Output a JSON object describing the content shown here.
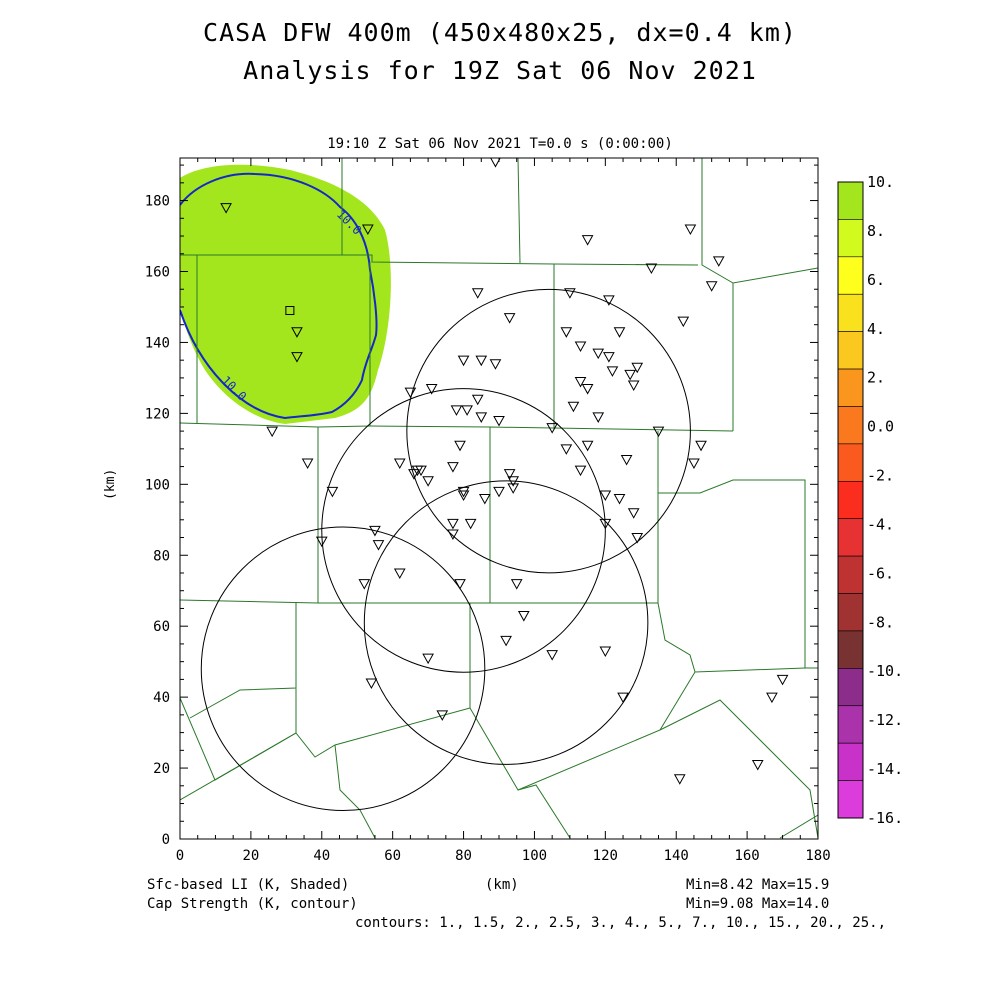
{
  "title": {
    "line1": "CASA DFW 400m (450x480x25, dx=0.4 km)",
    "line2": "Analysis for 19Z Sat 06 Nov 2021"
  },
  "subtitle": "19:10 Z Sat 06 Nov 2021    T=0.0 s (0:00:00)",
  "axes": {
    "xlabel": "(km)",
    "ylabel": "(km)",
    "xlim": [
      0,
      180
    ],
    "ylim": [
      0,
      192
    ],
    "x_ticks": [
      "0",
      "20",
      "40",
      "60",
      "80",
      "100",
      "120",
      "140",
      "160",
      "180"
    ],
    "y_ticks": [
      "0",
      "20",
      "40",
      "60",
      "80",
      "100",
      "120",
      "140",
      "160",
      "180"
    ]
  },
  "footer": {
    "left1": "Sfc-based LI (K, Shaded)",
    "left2": "Cap Strength (K, contour)",
    "center": "(km)",
    "right1": "Min=8.42 Max=15.9",
    "right2": "Min=9.08 Max=14.0",
    "contours": "contours: 1., 1.5, 2., 2.5, 3., 4., 5., 7., 10., 15., 20., 25.,"
  },
  "colorbar": {
    "labels": [
      "10.",
      "8.",
      "6.",
      "4.",
      "2.",
      "0.0",
      "-2.",
      "-4.",
      "-6.",
      "-8.",
      "-10.",
      "-12.",
      "-14.",
      "-16."
    ],
    "colors": [
      "#a4e61e",
      "#d2fa1e",
      "#ffff1e",
      "#fae11e",
      "#fac81e",
      "#fa961e",
      "#fa781e",
      "#fa5a1e",
      "#fa2d1e",
      "#e63232",
      "#be3232",
      "#a03232",
      "#783232",
      "#8c2d8c",
      "#aa32aa",
      "#c832c8",
      "#dc3cdc"
    ]
  },
  "map": {
    "shaded_color": "#a4e61e",
    "contour_color": "#1428c8",
    "boundary_color": "#2a782a",
    "contour_label": "10.0",
    "radar_range_rings": [
      {
        "x": 104,
        "y": 115,
        "r": 40
      },
      {
        "x": 80,
        "y": 87,
        "r": 40
      },
      {
        "x": 46,
        "y": 48,
        "r": 40
      },
      {
        "x": 92,
        "y": 61,
        "r": 40
      }
    ],
    "station_square": {
      "x": 31,
      "y": 149
    },
    "stations": [
      [
        89,
        191
      ],
      [
        13,
        178
      ],
      [
        53,
        172
      ],
      [
        115,
        169
      ],
      [
        144,
        172
      ],
      [
        152,
        163
      ],
      [
        133,
        161
      ],
      [
        150,
        156
      ],
      [
        84,
        154
      ],
      [
        110,
        154
      ],
      [
        121,
        152
      ],
      [
        93,
        147
      ],
      [
        142,
        146
      ],
      [
        33,
        143
      ],
      [
        109,
        143
      ],
      [
        124,
        143
      ],
      [
        113,
        139
      ],
      [
        118,
        137
      ],
      [
        121,
        136
      ],
      [
        33,
        136
      ],
      [
        80,
        135
      ],
      [
        85,
        135
      ],
      [
        89,
        134
      ],
      [
        122,
        132
      ],
      [
        127,
        131
      ],
      [
        129,
        133
      ],
      [
        128,
        128
      ],
      [
        113,
        129
      ],
      [
        115,
        127
      ],
      [
        65,
        126
      ],
      [
        71,
        127
      ],
      [
        118,
        119
      ],
      [
        84,
        124
      ],
      [
        78,
        121
      ],
      [
        81,
        121
      ],
      [
        85,
        119
      ],
      [
        90,
        118
      ],
      [
        111,
        122
      ],
      [
        105,
        116
      ],
      [
        135,
        115
      ],
      [
        26,
        115
      ],
      [
        115,
        111
      ],
      [
        147,
        111
      ],
      [
        109,
        110
      ],
      [
        79,
        111
      ],
      [
        62,
        106
      ],
      [
        36,
        106
      ],
      [
        67,
        104
      ],
      [
        77,
        105
      ],
      [
        126,
        107
      ],
      [
        145,
        106
      ],
      [
        68,
        104
      ],
      [
        66,
        103
      ],
      [
        70,
        101
      ],
      [
        93,
        103
      ],
      [
        94,
        101
      ],
      [
        94,
        99
      ],
      [
        90,
        98
      ],
      [
        113,
        104
      ],
      [
        43,
        98
      ],
      [
        80,
        97
      ],
      [
        80,
        98
      ],
      [
        86,
        96
      ],
      [
        120,
        97
      ],
      [
        124,
        96
      ],
      [
        128,
        92
      ],
      [
        120,
        89
      ],
      [
        129,
        85
      ],
      [
        77,
        89
      ],
      [
        77,
        86
      ],
      [
        82,
        89
      ],
      [
        55,
        87
      ],
      [
        56,
        83
      ],
      [
        40,
        84
      ],
      [
        62,
        75
      ],
      [
        52,
        72
      ],
      [
        79,
        72
      ],
      [
        95,
        72
      ],
      [
        97,
        63
      ],
      [
        92,
        56
      ],
      [
        105,
        52
      ],
      [
        120,
        53
      ],
      [
        70,
        51
      ],
      [
        54,
        44
      ],
      [
        125,
        40
      ],
      [
        74,
        35
      ],
      [
        141,
        17
      ],
      [
        163,
        21
      ],
      [
        170,
        45
      ],
      [
        167,
        40
      ]
    ]
  }
}
